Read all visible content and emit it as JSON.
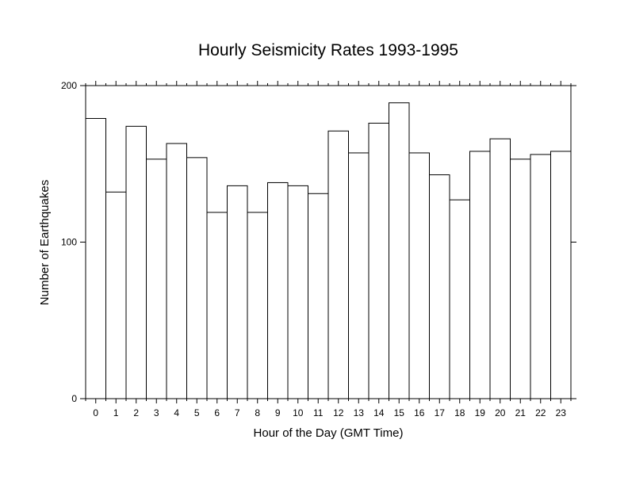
{
  "chart_data": {
    "type": "bar",
    "title": "Hourly Seismicity Rates 1993-1995",
    "xlabel": "Hour of the Day (GMT Time)",
    "ylabel": "Number of Earthquakes",
    "categories": [
      "0",
      "1",
      "2",
      "3",
      "4",
      "5",
      "6",
      "7",
      "8",
      "9",
      "10",
      "11",
      "12",
      "13",
      "14",
      "15",
      "16",
      "17",
      "18",
      "19",
      "20",
      "21",
      "22",
      "23"
    ],
    "values": [
      179,
      132,
      174,
      153,
      163,
      154,
      119,
      136,
      119,
      138,
      136,
      131,
      171,
      157,
      176,
      189,
      157,
      143,
      127,
      158,
      166,
      153,
      156,
      158
    ],
    "ylim": [
      0,
      200
    ],
    "yticks": [
      "0",
      "100",
      "200"
    ],
    "grid": false,
    "legend": "none",
    "colors": {
      "bar_fill": "#ffffff",
      "bar_stroke": "#000000",
      "axis": "#000000"
    }
  }
}
